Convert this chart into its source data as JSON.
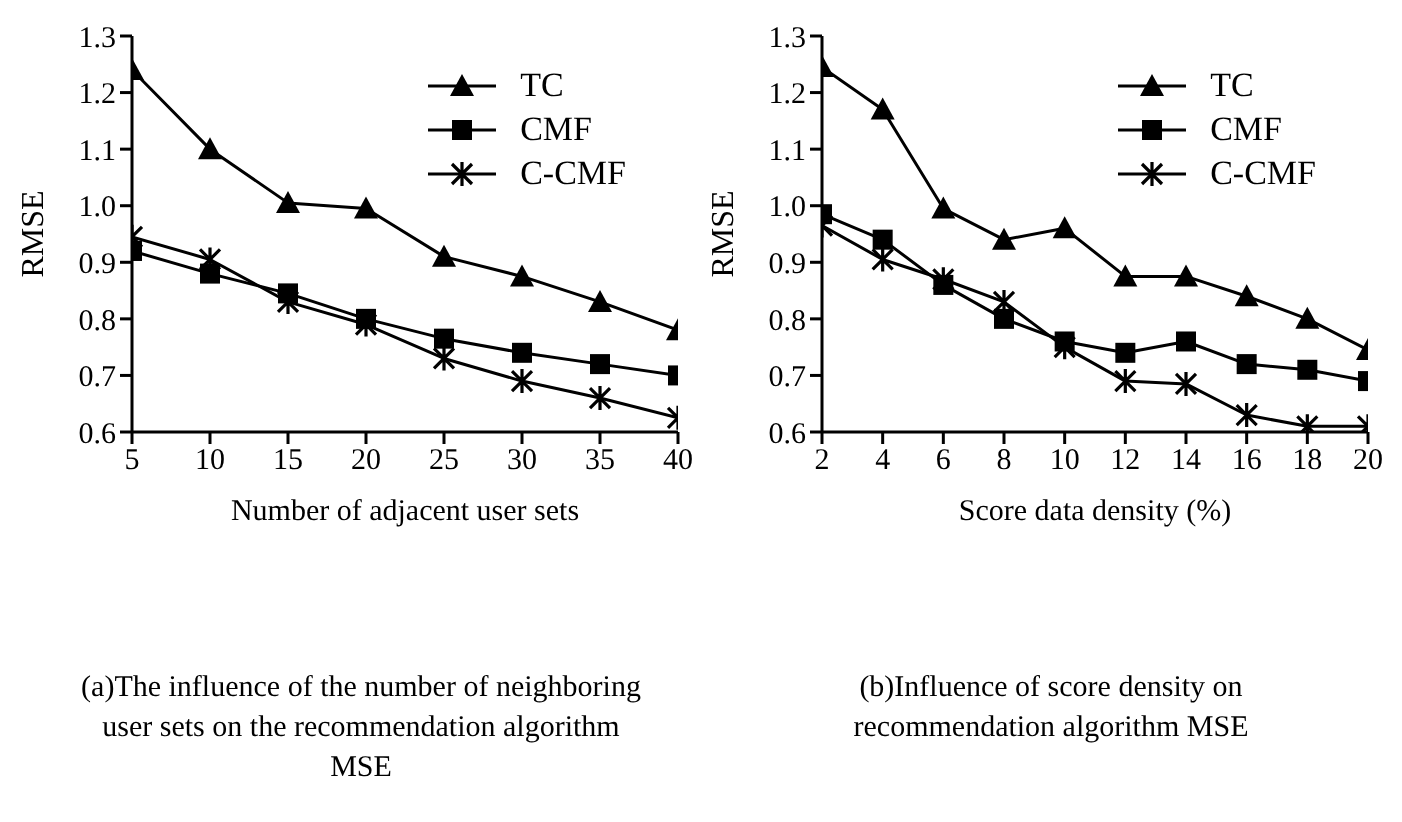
{
  "chart_data": [
    {
      "type": "line",
      "title": "(a)The influence of the number of neighboring user sets on the recommendation algorithm MSE",
      "xlabel": "Number of adjacent user sets",
      "ylabel": "RMSE",
      "x": [
        5,
        10,
        15,
        20,
        25,
        30,
        35,
        40
      ],
      "xlim": [
        5,
        40
      ],
      "xticks": [
        5,
        10,
        15,
        20,
        25,
        30,
        35,
        40
      ],
      "ylim": [
        0.6,
        1.3
      ],
      "yticks": [
        0.6,
        0.7,
        0.8,
        0.9,
        {
          "value": 1,
          "label": "1.0"
        },
        1.1,
        1.2,
        1.3
      ],
      "grid": false,
      "legend": "top right",
      "series": [
        {
          "name": "TC",
          "color": "#000000",
          "marker": "triangle",
          "values": [
            1.24,
            1.1,
            1.005,
            0.995,
            0.91,
            0.875,
            0.83,
            0.78
          ]
        },
        {
          "name": "CMF",
          "color": "#000000",
          "marker": "square",
          "values": [
            0.92,
            0.88,
            0.845,
            0.8,
            0.765,
            0.74,
            0.72,
            0.7
          ]
        },
        {
          "name": "C-CMF",
          "color": "#000000",
          "marker": "cross",
          "values": [
            0.945,
            0.905,
            0.83,
            0.79,
            0.73,
            0.69,
            0.66,
            0.625
          ]
        }
      ]
    },
    {
      "type": "line",
      "title": "(b)Influence of score density on recommendation algorithm MSE",
      "xlabel": "Score data density (%)",
      "ylabel": "RMSE",
      "x": [
        2,
        4,
        6,
        8,
        10,
        12,
        14,
        16,
        18,
        20
      ],
      "xlim": [
        2,
        20
      ],
      "xticks": [
        2,
        4,
        6,
        8,
        10,
        12,
        14,
        16,
        18,
        20
      ],
      "ylim": [
        0.6,
        1.3
      ],
      "yticks": [
        0.6,
        0.7,
        0.8,
        0.9,
        {
          "value": 1,
          "label": "1.0"
        },
        1.1,
        1.2,
        1.3
      ],
      "grid": false,
      "legend": "top right",
      "series": [
        {
          "name": "TC",
          "color": "#000000",
          "marker": "triangle",
          "values": [
            1.245,
            1.17,
            0.995,
            0.94,
            0.96,
            0.875,
            0.875,
            0.84,
            0.8,
            0.745
          ]
        },
        {
          "name": "CMF",
          "color": "#000000",
          "marker": "square",
          "values": [
            0.985,
            0.94,
            0.86,
            0.8,
            0.76,
            0.74,
            0.76,
            0.72,
            0.71,
            0.69
          ]
        },
        {
          "name": "C-CMF",
          "color": "#000000",
          "marker": "cross",
          "values": [
            0.965,
            0.905,
            0.87,
            0.83,
            0.75,
            0.69,
            0.685,
            0.63,
            0.61,
            0.61
          ]
        }
      ]
    }
  ]
}
